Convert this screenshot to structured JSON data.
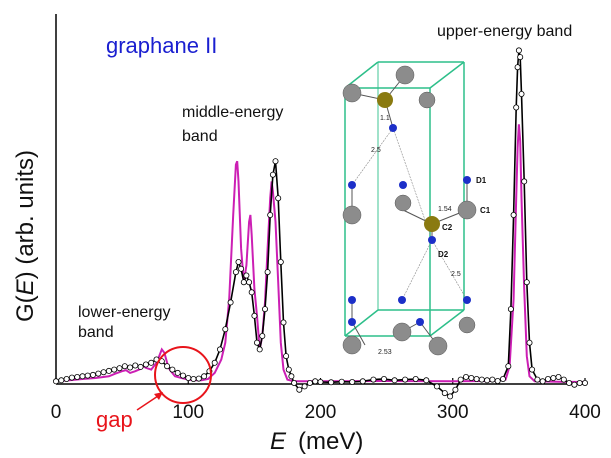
{
  "chart_data": {
    "type": "line",
    "title": "graphane II",
    "xlabel_italic": "E",
    "xlabel_unit": "(meV)",
    "ylabel_prefix": "G(",
    "ylabel_italic": "E",
    "ylabel_suffix": ") (arb. units)",
    "xlim": [
      0,
      400
    ],
    "xticks": [
      "0",
      "100",
      "200",
      "300",
      "400"
    ],
    "xtick_values": [
      0,
      100,
      200,
      300,
      400
    ],
    "ylim": [
      0,
      1
    ],
    "grid": false,
    "colors": {
      "experiment": "#000000",
      "simulation": "#cc1fb4",
      "title": "#1a1fd0",
      "gap": "#e8141b",
      "inset_frame": "#2dbf8a",
      "atom_c": "#8c8c8c",
      "atom_d": "#1c2fc8",
      "atom_h": "#8a7a10"
    },
    "annotations": [
      {
        "text": "lower-energy",
        "line2": "band",
        "x": 55
      },
      {
        "text": "middle-energy",
        "line2": "band",
        "x": 150
      },
      {
        "text": "upper-energy band",
        "x": 350
      },
      {
        "text": "gap",
        "x": 100
      }
    ],
    "inset_labels": [
      "1.1",
      "2.5",
      "D1",
      "1.54",
      "C1",
      "C2",
      "D2",
      "2.5",
      "2.53"
    ],
    "series": [
      {
        "marker": "open-circle",
        "color": "#000000",
        "points": [
          [
            0,
            0.005
          ],
          [
            4,
            0.008
          ],
          [
            8,
            0.012
          ],
          [
            12,
            0.016
          ],
          [
            16,
            0.018
          ],
          [
            20,
            0.02
          ],
          [
            24,
            0.022
          ],
          [
            28,
            0.024
          ],
          [
            32,
            0.028
          ],
          [
            36,
            0.032
          ],
          [
            40,
            0.036
          ],
          [
            44,
            0.04
          ],
          [
            48,
            0.044
          ],
          [
            52,
            0.05
          ],
          [
            56,
            0.046
          ],
          [
            60,
            0.052
          ],
          [
            64,
            0.048
          ],
          [
            68,
            0.055
          ],
          [
            72,
            0.06
          ],
          [
            76,
            0.07
          ],
          [
            80,
            0.065
          ],
          [
            84,
            0.05
          ],
          [
            88,
            0.04
          ],
          [
            92,
            0.03
          ],
          [
            96,
            0.022
          ],
          [
            100,
            0.015
          ],
          [
            104,
            0.012
          ],
          [
            108,
            0.013
          ],
          [
            112,
            0.02
          ],
          [
            116,
            0.035
          ],
          [
            120,
            0.06
          ],
          [
            124,
            0.1
          ],
          [
            128,
            0.16
          ],
          [
            132,
            0.24
          ],
          [
            136,
            0.33
          ],
          [
            138,
            0.36
          ],
          [
            140,
            0.34
          ],
          [
            142,
            0.3
          ],
          [
            144,
            0.32
          ],
          [
            146,
            0.3
          ],
          [
            148,
            0.27
          ],
          [
            150,
            0.2
          ],
          [
            152,
            0.12
          ],
          [
            154,
            0.1
          ],
          [
            156,
            0.14
          ],
          [
            158,
            0.22
          ],
          [
            160,
            0.33
          ],
          [
            162,
            0.5
          ],
          [
            164,
            0.62
          ],
          [
            166,
            0.66
          ],
          [
            168,
            0.55
          ],
          [
            170,
            0.36
          ],
          [
            172,
            0.18
          ],
          [
            174,
            0.08
          ],
          [
            176,
            0.04
          ],
          [
            178,
            0.02
          ],
          [
            180,
            0.0
          ],
          [
            184,
            -0.02
          ],
          [
            188,
            -0.01
          ],
          [
            192,
            0.0
          ],
          [
            196,
            0.005
          ],
          [
            200,
            0.003
          ],
          [
            208,
            0.002
          ],
          [
            216,
            0.004
          ],
          [
            224,
            0.003
          ],
          [
            232,
            0.005
          ],
          [
            240,
            0.01
          ],
          [
            248,
            0.012
          ],
          [
            256,
            0.008
          ],
          [
            264,
            0.01
          ],
          [
            272,
            0.012
          ],
          [
            280,
            0.008
          ],
          [
            288,
            -0.01
          ],
          [
            294,
            -0.03
          ],
          [
            298,
            -0.04
          ],
          [
            302,
            -0.02
          ],
          [
            306,
            0.01
          ],
          [
            310,
            0.018
          ],
          [
            314,
            0.015
          ],
          [
            318,
            0.012
          ],
          [
            322,
            0.01
          ],
          [
            326,
            0.008
          ],
          [
            330,
            0.01
          ],
          [
            334,
            0.006
          ],
          [
            338,
            0.012
          ],
          [
            342,
            0.05
          ],
          [
            344,
            0.22
          ],
          [
            346,
            0.5
          ],
          [
            348,
            0.82
          ],
          [
            349,
            0.94
          ],
          [
            350,
            0.99
          ],
          [
            351,
            0.97
          ],
          [
            352,
            0.86
          ],
          [
            354,
            0.6
          ],
          [
            356,
            0.3
          ],
          [
            358,
            0.12
          ],
          [
            360,
            0.04
          ],
          [
            364,
            0.01
          ],
          [
            368,
            0.005
          ],
          [
            372,
            0.012
          ],
          [
            376,
            0.015
          ],
          [
            380,
            0.018
          ],
          [
            384,
            0.01
          ],
          [
            388,
            0.0
          ],
          [
            392,
            -0.005
          ],
          [
            396,
            0.0
          ],
          [
            400,
            0.0
          ]
        ]
      },
      {
        "color": "#cc1fb4",
        "points": [
          [
            0,
            0.005
          ],
          [
            10,
            0.008
          ],
          [
            20,
            0.012
          ],
          [
            30,
            0.015
          ],
          [
            40,
            0.02
          ],
          [
            45,
            0.028
          ],
          [
            50,
            0.035
          ],
          [
            53,
            0.038
          ],
          [
            56,
            0.03
          ],
          [
            60,
            0.035
          ],
          [
            64,
            0.042
          ],
          [
            66,
            0.05
          ],
          [
            68,
            0.045
          ],
          [
            72,
            0.04
          ],
          [
            76,
            0.06
          ],
          [
            78,
            0.08
          ],
          [
            80,
            0.1
          ],
          [
            82,
            0.09
          ],
          [
            84,
            0.06
          ],
          [
            86,
            0.04
          ],
          [
            90,
            0.02
          ],
          [
            95,
            0.015
          ],
          [
            100,
            0.01
          ],
          [
            105,
            0.008
          ],
          [
            110,
            0.008
          ],
          [
            115,
            0.012
          ],
          [
            120,
            0.03
          ],
          [
            125,
            0.07
          ],
          [
            128,
            0.12
          ],
          [
            131,
            0.25
          ],
          [
            134,
            0.5
          ],
          [
            136,
            0.65
          ],
          [
            137,
            0.66
          ],
          [
            138,
            0.6
          ],
          [
            140,
            0.4
          ],
          [
            142,
            0.3
          ],
          [
            144,
            0.35
          ],
          [
            146,
            0.48
          ],
          [
            147,
            0.5
          ],
          [
            148,
            0.44
          ],
          [
            150,
            0.28
          ],
          [
            152,
            0.2
          ],
          [
            154,
            0.1
          ],
          [
            156,
            0.14
          ],
          [
            158,
            0.24
          ],
          [
            160,
            0.4
          ],
          [
            162,
            0.55
          ],
          [
            163,
            0.6
          ],
          [
            164,
            0.57
          ],
          [
            166,
            0.48
          ],
          [
            168,
            0.3
          ],
          [
            170,
            0.12
          ],
          [
            172,
            0.04
          ],
          [
            175,
            0.01
          ],
          [
            180,
            0.005
          ],
          [
            200,
            0.005
          ],
          [
            250,
            0.006
          ],
          [
            300,
            0.005
          ],
          [
            330,
            0.006
          ],
          [
            340,
            0.01
          ],
          [
            343,
            0.05
          ],
          [
            346,
            0.25
          ],
          [
            348,
            0.55
          ],
          [
            349,
            0.7
          ],
          [
            350,
            0.77
          ],
          [
            351,
            0.72
          ],
          [
            352,
            0.55
          ],
          [
            354,
            0.28
          ],
          [
            356,
            0.08
          ],
          [
            358,
            0.02
          ],
          [
            362,
            0.005
          ],
          [
            380,
            0.004
          ],
          [
            400,
            0.003
          ]
        ]
      }
    ]
  }
}
